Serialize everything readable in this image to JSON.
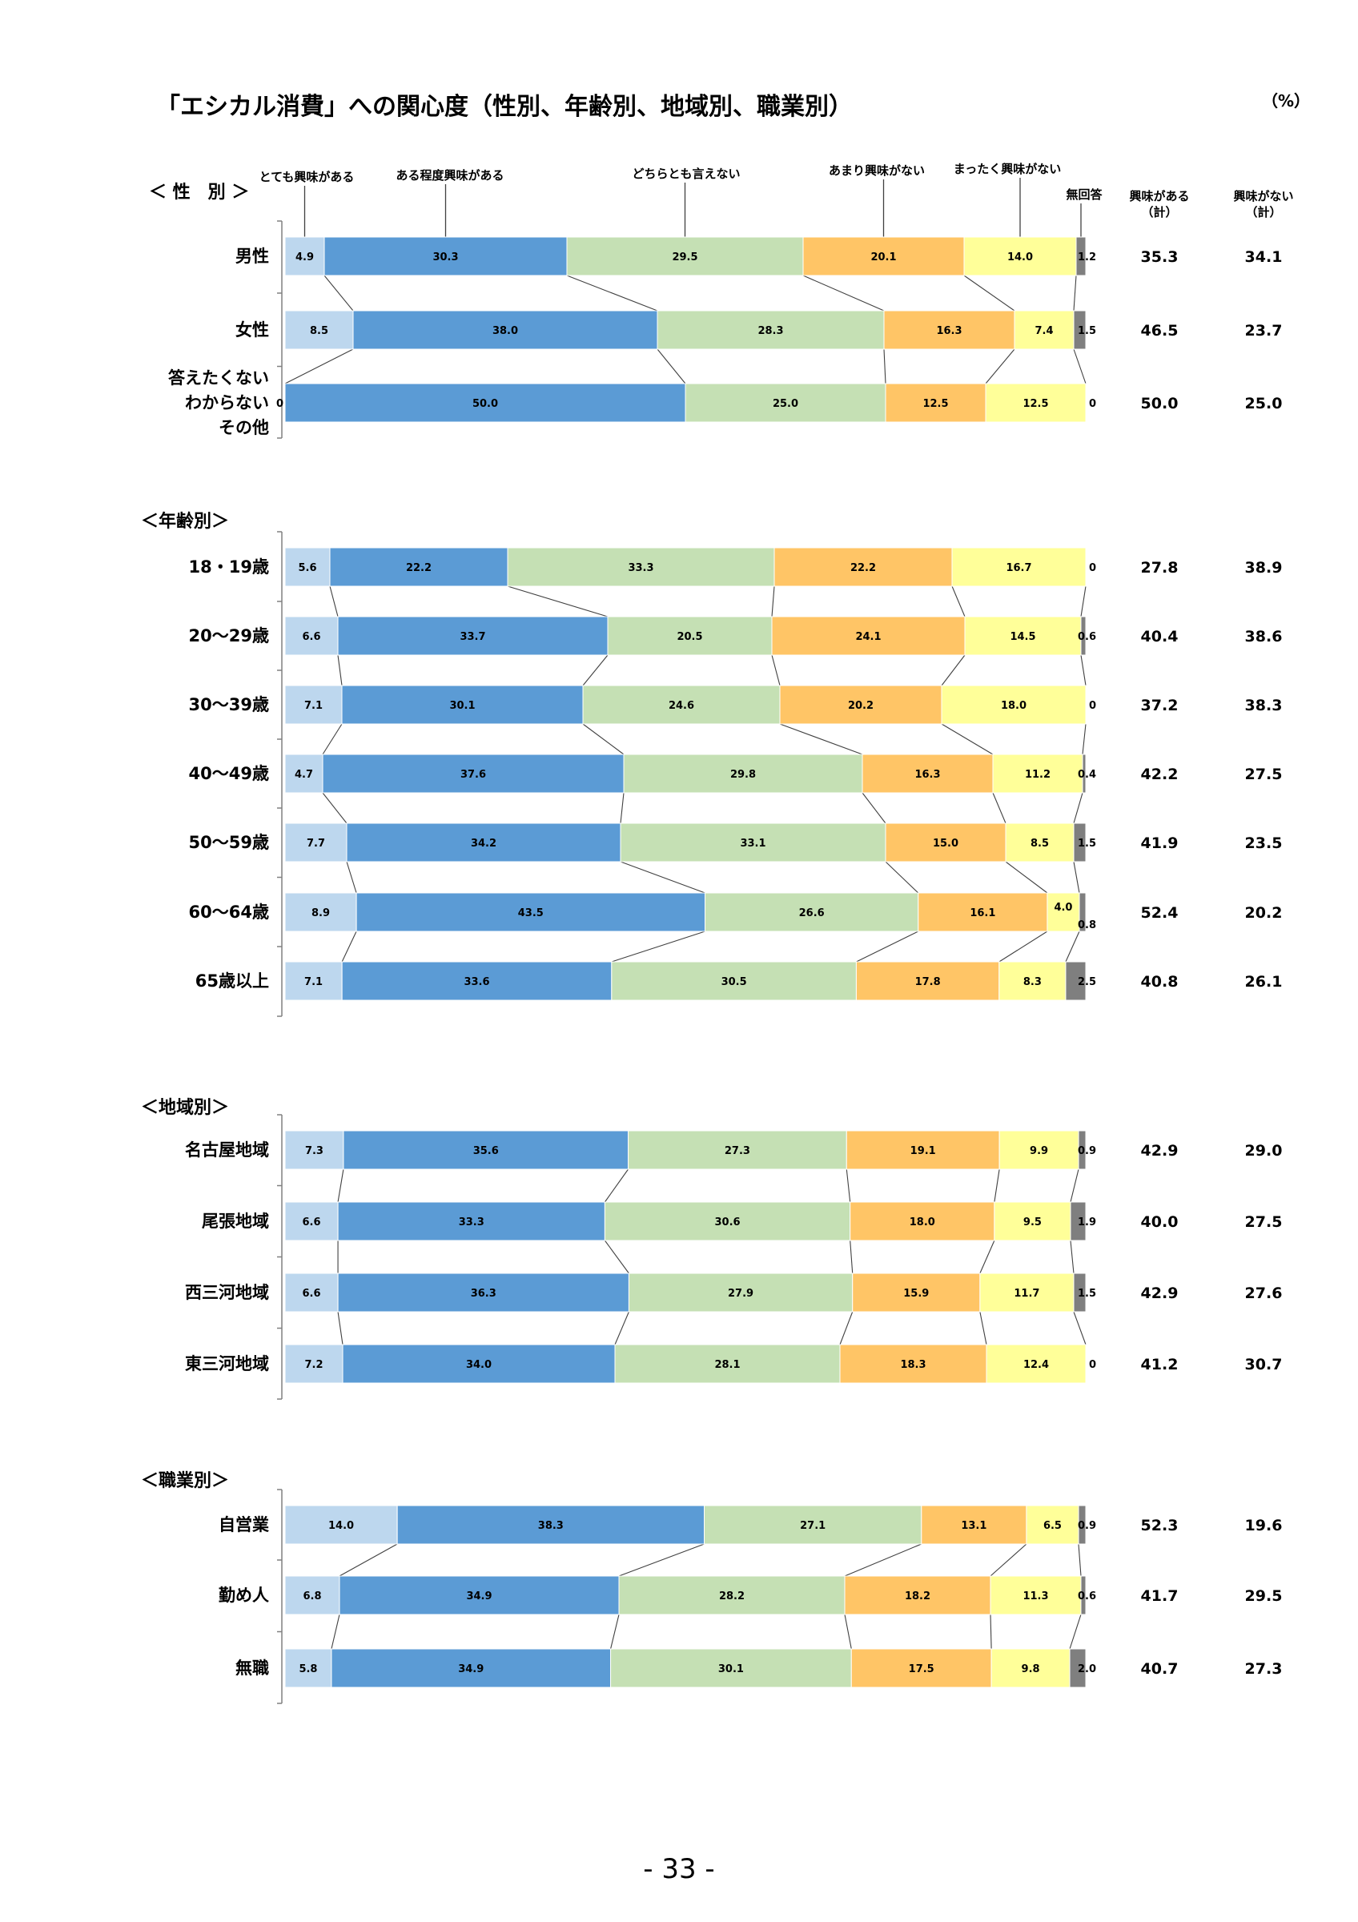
{
  "page": {
    "title": "「エシカル消費」への関心度（性別、年齢別、地域別、職業別）",
    "unit": "（%）",
    "page_number": "- 33 -"
  },
  "legend": [
    "とても興味がある",
    "ある程度興味がある",
    "どちらとも言えない",
    "あまり興味がない",
    "まったく興味がない",
    "無回答"
  ],
  "total_headers": {
    "interested": [
      "興味がある",
      "（計）"
    ],
    "not_interested": [
      "興味がない",
      "（計）"
    ]
  },
  "colors": {
    "series": [
      "#bdd7ee",
      "#5b9bd5",
      "#c5e0b4",
      "#ffc566",
      "#ffff99",
      "#7f7f7f"
    ],
    "connector": "#404040",
    "axis": "#808080"
  },
  "chart_data": {
    "type": "bar",
    "orientation": "horizontal",
    "stacked": true,
    "percent": true,
    "title": "「エシカル消費」への関心度（性別、年齢別、地域別、職業別）",
    "series_names": [
      "とても興味がある",
      "ある程度興味がある",
      "どちらとも言えない",
      "あまり興味がない",
      "まったく興味がない",
      "無回答"
    ],
    "groups": [
      {
        "label": "＜ 性　別 ＞",
        "rows": [
          {
            "label": [
              "男性"
            ],
            "values": [
              4.9,
              30.3,
              29.5,
              20.1,
              14.0,
              1.2
            ],
            "labels": [
              "4.9",
              "30.3",
              "29.5",
              "20.1",
              "14.0",
              "1.2"
            ],
            "interested": "35.3",
            "not_interested": "34.1"
          },
          {
            "label": [
              "女性"
            ],
            "values": [
              8.5,
              38.0,
              28.3,
              16.3,
              7.4,
              1.5
            ],
            "labels": [
              "8.5",
              "38.0",
              "28.3",
              "16.3",
              "7.4",
              "1.5"
            ],
            "interested": "46.5",
            "not_interested": "23.7"
          },
          {
            "label": [
              "答えたくない",
              "わからない",
              "その他"
            ],
            "values": [
              0,
              50.0,
              25.0,
              12.5,
              12.5,
              0
            ],
            "labels": [
              "0",
              "50.0",
              "25.0",
              "12.5",
              "12.5",
              "0"
            ],
            "interested": "50.0",
            "not_interested": "25.0"
          }
        ]
      },
      {
        "label": "＜年齢別＞",
        "rows": [
          {
            "label": [
              "18・19歳"
            ],
            "values": [
              5.6,
              22.2,
              33.3,
              22.2,
              16.7,
              0
            ],
            "labels": [
              "5.6",
              "22.2",
              "33.3",
              "22.2",
              "16.7",
              "0"
            ],
            "interested": "27.8",
            "not_interested": "38.9"
          },
          {
            "label": [
              "20～29歳"
            ],
            "values": [
              6.6,
              33.7,
              20.5,
              24.1,
              14.5,
              0.6
            ],
            "labels": [
              "6.6",
              "33.7",
              "20.5",
              "24.1",
              "14.5",
              "0.6"
            ],
            "interested": "40.4",
            "not_interested": "38.6"
          },
          {
            "label": [
              "30～39歳"
            ],
            "values": [
              7.1,
              30.1,
              24.6,
              20.2,
              18.0,
              0
            ],
            "labels": [
              "7.1",
              "30.1",
              "24.6",
              "20.2",
              "18.0",
              "0"
            ],
            "interested": "37.2",
            "not_interested": "38.3"
          },
          {
            "label": [
              "40～49歳"
            ],
            "values": [
              4.7,
              37.6,
              29.8,
              16.3,
              11.2,
              0.4
            ],
            "labels": [
              "4.7",
              "37.6",
              "29.8",
              "16.3",
              "11.2",
              "0.4"
            ],
            "interested": "42.2",
            "not_interested": "27.5"
          },
          {
            "label": [
              "50～59歳"
            ],
            "values": [
              7.7,
              34.2,
              33.1,
              15.0,
              8.5,
              1.5
            ],
            "labels": [
              "7.7",
              "34.2",
              "33.1",
              "15.0",
              "8.5",
              "1.5"
            ],
            "interested": "41.9",
            "not_interested": "23.5"
          },
          {
            "label": [
              "60～64歳"
            ],
            "values": [
              8.9,
              43.5,
              26.6,
              16.1,
              4.0,
              0.8
            ],
            "labels": [
              "8.9",
              "43.5",
              "26.6",
              "16.1",
              "4.0",
              "0.8"
            ],
            "interested": "52.4",
            "not_interested": "20.2"
          },
          {
            "label": [
              "65歳以上"
            ],
            "values": [
              7.1,
              33.6,
              30.5,
              17.8,
              8.3,
              2.5
            ],
            "labels": [
              "7.1",
              "33.6",
              "30.5",
              "17.8",
              "8.3",
              "2.5"
            ],
            "interested": "40.8",
            "not_interested": "26.1"
          }
        ]
      },
      {
        "label": "＜地域別＞",
        "rows": [
          {
            "label": [
              "名古屋地域"
            ],
            "values": [
              7.3,
              35.6,
              27.3,
              19.1,
              9.9,
              0.9
            ],
            "labels": [
              "7.3",
              "35.6",
              "27.3",
              "19.1",
              "9.9",
              "0.9"
            ],
            "interested": "42.9",
            "not_interested": "29.0"
          },
          {
            "label": [
              "尾張地域"
            ],
            "values": [
              6.6,
              33.3,
              30.6,
              18.0,
              9.5,
              1.9
            ],
            "labels": [
              "6.6",
              "33.3",
              "30.6",
              "18.0",
              "9.5",
              "1.9"
            ],
            "interested": "40.0",
            "not_interested": "27.5"
          },
          {
            "label": [
              "西三河地域"
            ],
            "values": [
              6.6,
              36.3,
              27.9,
              15.9,
              11.7,
              1.5
            ],
            "labels": [
              "6.6",
              "36.3",
              "27.9",
              "15.9",
              "11.7",
              "1.5"
            ],
            "interested": "42.9",
            "not_interested": "27.6"
          },
          {
            "label": [
              "東三河地域"
            ],
            "values": [
              7.2,
              34.0,
              28.1,
              18.3,
              12.4,
              0
            ],
            "labels": [
              "7.2",
              "34.0",
              "28.1",
              "18.3",
              "12.4",
              "0"
            ],
            "interested": "41.2",
            "not_interested": "30.7"
          }
        ]
      },
      {
        "label": "＜職業別＞",
        "rows": [
          {
            "label": [
              "自営業"
            ],
            "values": [
              14.0,
              38.3,
              27.1,
              13.1,
              6.5,
              0.9
            ],
            "labels": [
              "14.0",
              "38.3",
              "27.1",
              "13.1",
              "6.5",
              "0.9"
            ],
            "interested": "52.3",
            "not_interested": "19.6"
          },
          {
            "label": [
              "勤め人"
            ],
            "values": [
              6.8,
              34.9,
              28.2,
              18.2,
              11.3,
              0.6
            ],
            "labels": [
              "6.8",
              "34.9",
              "28.2",
              "18.2",
              "11.3",
              "0.6"
            ],
            "interested": "41.7",
            "not_interested": "29.5"
          },
          {
            "label": [
              "無職"
            ],
            "values": [
              5.8,
              34.9,
              30.1,
              17.5,
              9.8,
              2.0
            ],
            "labels": [
              "5.8",
              "34.9",
              "30.1",
              "17.5",
              "9.8",
              "2.0"
            ],
            "interested": "40.7",
            "not_interested": "27.3"
          }
        ]
      }
    ]
  }
}
